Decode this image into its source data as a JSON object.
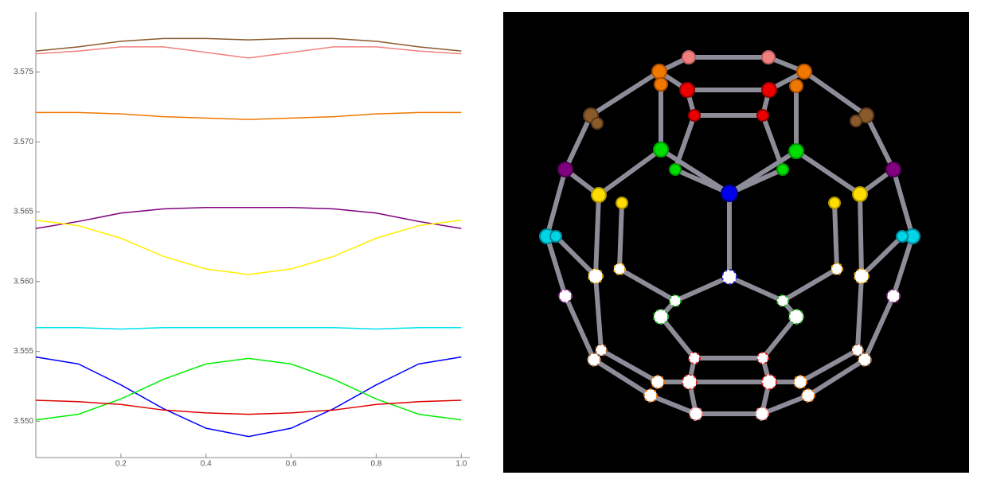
{
  "chart_data": {
    "type": "line",
    "x": [
      0,
      0.1,
      0.2,
      0.3,
      0.4,
      0.5,
      0.6,
      0.7,
      0.8,
      0.9,
      1
    ],
    "series": [
      {
        "color": "#8b5a2b",
        "values": [
          3.5765,
          3.5768,
          3.5772,
          3.5774,
          3.5774,
          3.5773,
          3.5774,
          3.5774,
          3.5772,
          3.5768,
          3.5765
        ]
      },
      {
        "color": "#f08080",
        "values": [
          3.5763,
          3.5765,
          3.5768,
          3.5768,
          3.5764,
          3.576,
          3.5764,
          3.5768,
          3.5768,
          3.5765,
          3.5763
        ]
      },
      {
        "color": "#f07800",
        "values": [
          3.5721,
          3.5721,
          3.572,
          3.5718,
          3.5717,
          3.5716,
          3.5717,
          3.5718,
          3.572,
          3.5721,
          3.5721
        ]
      },
      {
        "color": "#800080",
        "values": [
          3.5638,
          3.5643,
          3.5649,
          3.5652,
          3.5653,
          3.5653,
          3.5653,
          3.5652,
          3.5649,
          3.5643,
          3.5638
        ]
      },
      {
        "color": "#ffee00",
        "values": [
          3.5644,
          3.564,
          3.5631,
          3.5618,
          3.5609,
          3.5605,
          3.5609,
          3.5618,
          3.5631,
          3.564,
          3.5644
        ]
      },
      {
        "color": "#00e5ee",
        "values": [
          3.5567,
          3.5567,
          3.5566,
          3.5567,
          3.5567,
          3.5567,
          3.5567,
          3.5567,
          3.5566,
          3.5567,
          3.5567
        ]
      },
      {
        "color": "#0000ff",
        "values": [
          3.5546,
          3.5541,
          3.5526,
          3.5509,
          3.5495,
          3.5489,
          3.5495,
          3.5509,
          3.5526,
          3.5541,
          3.5546
        ]
      },
      {
        "color": "#00ee00",
        "values": [
          3.5501,
          3.5505,
          3.5516,
          3.553,
          3.5541,
          3.5545,
          3.5541,
          3.553,
          3.5516,
          3.5505,
          3.5501
        ]
      },
      {
        "color": "#dd0000",
        "values": [
          3.5515,
          3.5514,
          3.5512,
          3.5508,
          3.5506,
          3.5505,
          3.5506,
          3.5508,
          3.5512,
          3.5514,
          3.5515
        ]
      }
    ],
    "xlim": [
      0,
      1.02
    ],
    "xticks": [
      0.2,
      0.4,
      0.6,
      0.8,
      {
        "value": 1,
        "label": "1.0"
      }
    ],
    "ylim": [
      3.5474,
      3.5793
    ],
    "yticks": [
      {
        "value": 3.55,
        "label": "3.550"
      },
      3.555,
      {
        "value": 3.56,
        "label": "3.560"
      },
      3.565,
      {
        "value": 3.57,
        "label": "3.570"
      },
      3.575
    ]
  }
}
